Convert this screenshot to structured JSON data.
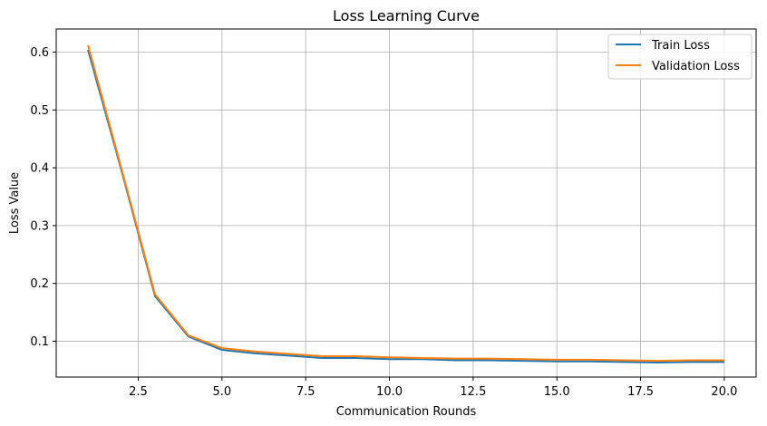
{
  "chart_data": {
    "type": "line",
    "title": "Loss Learning Curve",
    "xlabel": "Communication Rounds",
    "ylabel": "Loss Value",
    "xlim": [
      0.05,
      20.95
    ],
    "ylim": [
      0.038,
      0.64
    ],
    "xticks": [
      "2.5",
      "5.0",
      "7.5",
      "10.0",
      "12.5",
      "15.0",
      "17.5",
      "20.0"
    ],
    "yticks": [
      "0.1",
      "0.2",
      "0.3",
      "0.4",
      "0.5",
      "0.6"
    ],
    "grid": true,
    "legend_position": "top-right",
    "x": [
      1,
      2,
      3,
      4,
      5,
      6,
      7,
      8,
      9,
      10,
      11,
      12,
      13,
      14,
      15,
      16,
      17,
      18,
      19,
      20
    ],
    "series": [
      {
        "name": "Train Loss",
        "color": "#1f77b4",
        "values": [
          0.604,
          0.395,
          0.178,
          0.108,
          0.085,
          0.079,
          0.075,
          0.071,
          0.071,
          0.069,
          0.069,
          0.067,
          0.067,
          0.066,
          0.065,
          0.065,
          0.064,
          0.063,
          0.064,
          0.064
        ]
      },
      {
        "name": "Validation Loss",
        "color": "#ff7f0e",
        "values": [
          0.612,
          0.398,
          0.181,
          0.11,
          0.088,
          0.082,
          0.078,
          0.074,
          0.074,
          0.072,
          0.071,
          0.07,
          0.07,
          0.069,
          0.068,
          0.068,
          0.067,
          0.066,
          0.067,
          0.067
        ]
      }
    ]
  }
}
